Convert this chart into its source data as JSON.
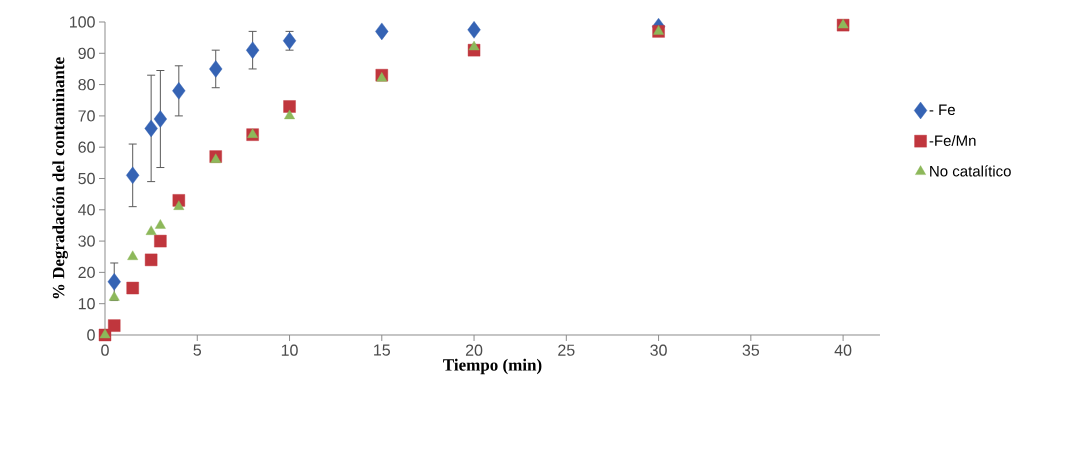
{
  "chart_data": {
    "type": "scatter",
    "xlabel": "Tiempo (min)",
    "ylabel": "% Degradación del contaminante",
    "xlim": [
      0,
      42
    ],
    "xticks": [
      0,
      5,
      10,
      15,
      20,
      25,
      30,
      35,
      40
    ],
    "ylim": [
      0,
      100
    ],
    "yticks": [
      0,
      10,
      20,
      30,
      40,
      50,
      60,
      70,
      80,
      90,
      100
    ],
    "grid": false,
    "legend": "right",
    "series": [
      {
        "name": "- Fe",
        "color": "#3563b4",
        "marker": "diamond",
        "x": [
          0.5,
          1.5,
          2.5,
          3,
          4,
          6,
          8,
          10,
          15,
          20,
          30
        ],
        "values": [
          17,
          51,
          66,
          69,
          78,
          85,
          91,
          94,
          97,
          97.5,
          98.5
        ],
        "errors": [
          6,
          10,
          17,
          15.5,
          8,
          6,
          6,
          3,
          null,
          null,
          null
        ]
      },
      {
        "name": "-Fe/Mn",
        "color": "#c0363d",
        "marker": "square",
        "x": [
          0,
          0.5,
          1.5,
          2.5,
          3,
          4,
          6,
          8,
          10,
          15,
          20,
          30,
          40
        ],
        "values": [
          0,
          3,
          15,
          24,
          30,
          43,
          57,
          64,
          73,
          83,
          91,
          97,
          99
        ]
      },
      {
        "name": "No catalítico",
        "color": "#8db85a",
        "marker": "triangle",
        "x": [
          0,
          0.5,
          1.5,
          2.5,
          3,
          4,
          6,
          8,
          10,
          15,
          20,
          30,
          40
        ],
        "values": [
          0,
          12,
          25,
          33,
          35,
          41,
          56,
          64,
          70,
          82,
          92,
          97,
          99
        ]
      }
    ]
  }
}
